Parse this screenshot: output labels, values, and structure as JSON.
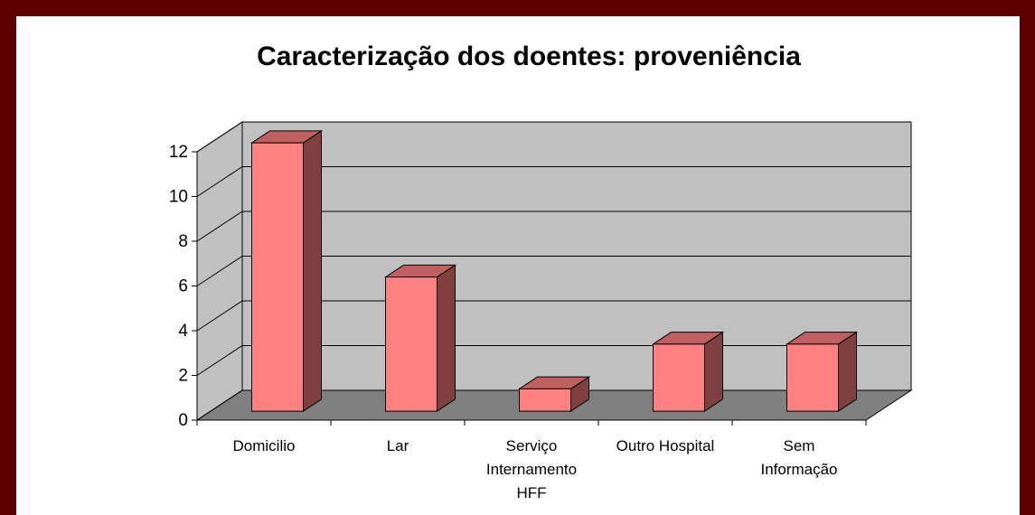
{
  "chart_data": {
    "type": "bar3d",
    "title": "Caracterização dos doentes: proveniência",
    "categories": [
      "Domicilio",
      "Lar",
      "Serviço\nInternamento\nHFF",
      "Outro Hospital",
      "Sem\nInformação"
    ],
    "values": [
      12,
      6,
      1,
      3,
      3
    ],
    "color": "#ff8080",
    "ylim": [
      0,
      12
    ],
    "yticks": [
      0,
      2,
      4,
      6,
      8,
      10,
      12
    ],
    "grid": true
  }
}
